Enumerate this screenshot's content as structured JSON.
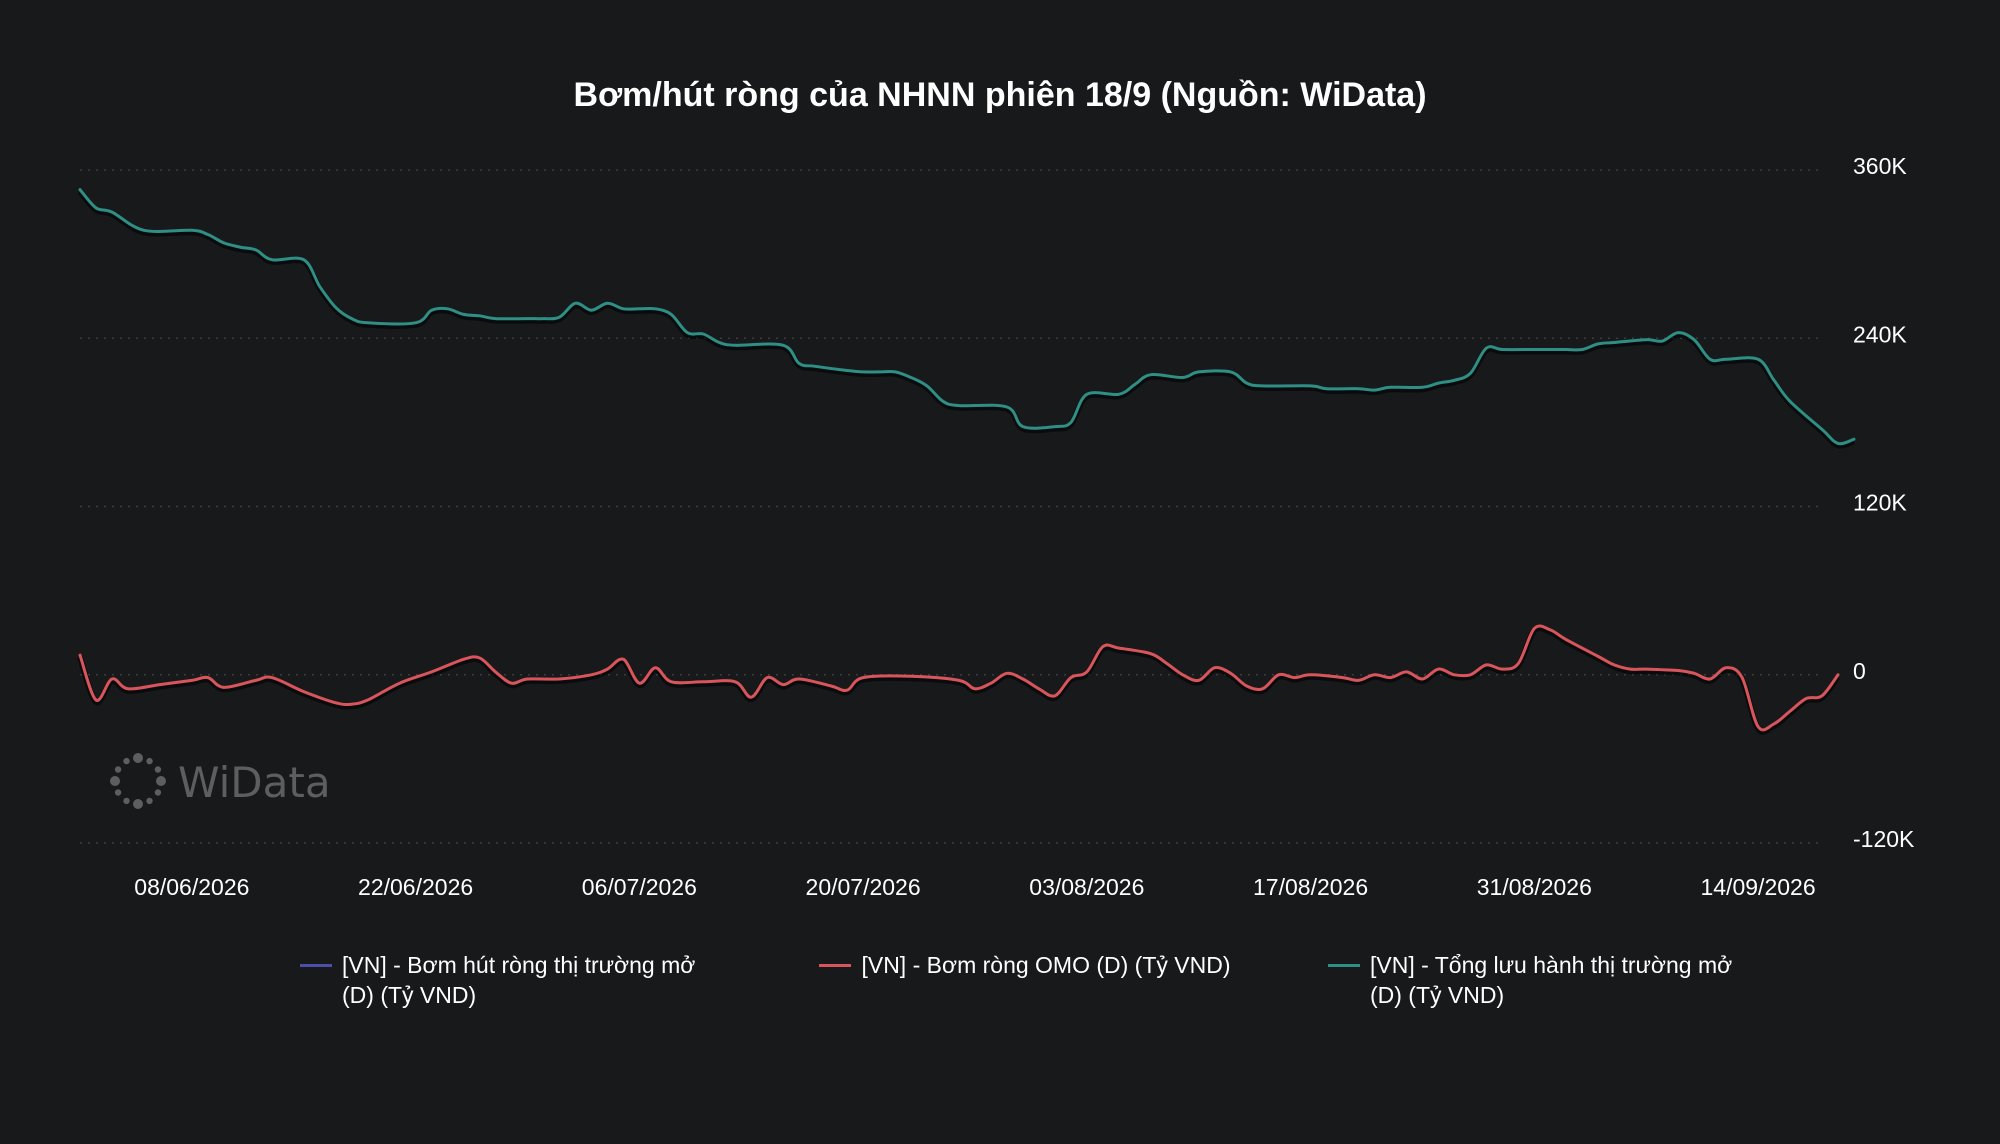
{
  "colors": {
    "background": "#18191b",
    "series_net": "#4b4fa8",
    "series_omo": "#d9555c",
    "series_total": "#2f8f84",
    "grid": "#3a3c40",
    "watermark": "#5c5e62"
  },
  "watermark": {
    "text": "WiData"
  },
  "chart_data": {
    "type": "line",
    "title": "Bơm/hút ròng của NHNN phiên 18/9 (Nguồn: WiData)",
    "x_range": [
      "2026-06-01",
      "2026-09-18"
    ],
    "x_ticks": [
      "08/06/2026",
      "22/06/2026",
      "06/07/2026",
      "20/07/2026",
      "03/08/2026",
      "17/08/2026",
      "31/08/2026",
      "14/09/2026"
    ],
    "x_tick_dates": [
      "2026-06-08",
      "2026-06-22",
      "2026-07-06",
      "2026-07-20",
      "2026-08-03",
      "2026-08-17",
      "2026-08-31",
      "2026-09-14"
    ],
    "y_ticks": [
      {
        "value": 360000,
        "label": "360K"
      },
      {
        "value": 240000,
        "label": "240K"
      },
      {
        "value": 120000,
        "label": "120K"
      },
      {
        "value": 0,
        "label": "0"
      },
      {
        "value": -120000,
        "label": "-120K"
      }
    ],
    "ylim": [
      -120000,
      360000
    ],
    "y_axis_position": "right",
    "grid": true,
    "legend_position": "bottom",
    "series": [
      {
        "name": "[VN] - Bơm hút ròng thị trường mở (D) (Tỷ VND)",
        "color": "#4b4fa8",
        "points": []
      },
      {
        "name": "[VN] - Bơm ròng OMO (D) (Tỷ VND)",
        "color": "#d9555c",
        "points": [
          [
            "2026-06-01",
            14000
          ],
          [
            "2026-06-02",
            -18000
          ],
          [
            "2026-06-03",
            -3000
          ],
          [
            "2026-06-04",
            -10000
          ],
          [
            "2026-06-06",
            -7000
          ],
          [
            "2026-06-08",
            -4000
          ],
          [
            "2026-06-09",
            -2000
          ],
          [
            "2026-06-10",
            -9000
          ],
          [
            "2026-06-12",
            -4000
          ],
          [
            "2026-06-13",
            -2000
          ],
          [
            "2026-06-15",
            -12000
          ],
          [
            "2026-06-17",
            -20000
          ],
          [
            "2026-06-18",
            -21000
          ],
          [
            "2026-06-19",
            -18000
          ],
          [
            "2026-06-21",
            -6000
          ],
          [
            "2026-06-23",
            2000
          ],
          [
            "2026-06-25",
            11000
          ],
          [
            "2026-06-26",
            12000
          ],
          [
            "2026-06-27",
            2000
          ],
          [
            "2026-06-28",
            -6000
          ],
          [
            "2026-06-29",
            -3000
          ],
          [
            "2026-07-01",
            -3000
          ],
          [
            "2026-07-03",
            0
          ],
          [
            "2026-07-04",
            4000
          ],
          [
            "2026-07-05",
            11000
          ],
          [
            "2026-07-06",
            -6000
          ],
          [
            "2026-07-07",
            5000
          ],
          [
            "2026-07-08",
            -5000
          ],
          [
            "2026-07-10",
            -5000
          ],
          [
            "2026-07-12",
            -5000
          ],
          [
            "2026-07-13",
            -16000
          ],
          [
            "2026-07-14",
            -2000
          ],
          [
            "2026-07-15",
            -7000
          ],
          [
            "2026-07-16",
            -3000
          ],
          [
            "2026-07-18",
            -8000
          ],
          [
            "2026-07-19",
            -11000
          ],
          [
            "2026-07-20",
            -2000
          ],
          [
            "2026-07-23",
            -1000
          ],
          [
            "2026-07-26",
            -4000
          ],
          [
            "2026-07-27",
            -10000
          ],
          [
            "2026-07-28",
            -6000
          ],
          [
            "2026-07-29",
            1000
          ],
          [
            "2026-07-30",
            -3000
          ],
          [
            "2026-07-31",
            -10000
          ],
          [
            "2026-08-01",
            -15000
          ],
          [
            "2026-08-02",
            -2000
          ],
          [
            "2026-08-03",
            2000
          ],
          [
            "2026-08-04",
            20000
          ],
          [
            "2026-08-05",
            19000
          ],
          [
            "2026-08-07",
            15000
          ],
          [
            "2026-08-08",
            8000
          ],
          [
            "2026-08-09",
            0
          ],
          [
            "2026-08-10",
            -4000
          ],
          [
            "2026-08-11",
            5000
          ],
          [
            "2026-08-12",
            1000
          ],
          [
            "2026-08-13",
            -8000
          ],
          [
            "2026-08-14",
            -10000
          ],
          [
            "2026-08-15",
            0
          ],
          [
            "2026-08-16",
            -2000
          ],
          [
            "2026-08-17",
            0
          ],
          [
            "2026-08-19",
            -2000
          ],
          [
            "2026-08-20",
            -4000
          ],
          [
            "2026-08-21",
            0
          ],
          [
            "2026-08-22",
            -2000
          ],
          [
            "2026-08-23",
            2000
          ],
          [
            "2026-08-24",
            -3000
          ],
          [
            "2026-08-25",
            4000
          ],
          [
            "2026-08-26",
            0
          ],
          [
            "2026-08-27",
            0
          ],
          [
            "2026-08-28",
            7000
          ],
          [
            "2026-08-29",
            4000
          ],
          [
            "2026-08-30",
            8000
          ],
          [
            "2026-08-31",
            33000
          ],
          [
            "2026-09-01",
            32000
          ],
          [
            "2026-09-02",
            25000
          ],
          [
            "2026-09-04",
            13000
          ],
          [
            "2026-09-05",
            7000
          ],
          [
            "2026-09-06",
            4000
          ],
          [
            "2026-09-07",
            4000
          ],
          [
            "2026-09-09",
            3000
          ],
          [
            "2026-09-10",
            1000
          ],
          [
            "2026-09-11",
            -3000
          ],
          [
            "2026-09-12",
            5000
          ],
          [
            "2026-09-13",
            -2000
          ],
          [
            "2026-09-14",
            -37000
          ],
          [
            "2026-09-15",
            -35000
          ],
          [
            "2026-09-16",
            -26000
          ],
          [
            "2026-09-17",
            -17000
          ],
          [
            "2026-09-18",
            -15000
          ],
          [
            "2026-09-19",
            0
          ]
        ]
      },
      {
        "name": "[VN] - Tổng lưu hành thị trường mở (D) (Tỷ VND)",
        "color": "#2f8f84",
        "points": [
          [
            "2026-06-01",
            346000
          ],
          [
            "2026-06-02",
            333000
          ],
          [
            "2026-06-03",
            330000
          ],
          [
            "2026-06-05",
            317000
          ],
          [
            "2026-06-08",
            317000
          ],
          [
            "2026-06-09",
            314000
          ],
          [
            "2026-06-10",
            308000
          ],
          [
            "2026-06-11",
            305000
          ],
          [
            "2026-06-12",
            303000
          ],
          [
            "2026-06-13",
            296000
          ],
          [
            "2026-06-15",
            296000
          ],
          [
            "2026-06-16",
            277000
          ],
          [
            "2026-06-17",
            262000
          ],
          [
            "2026-06-18",
            254000
          ],
          [
            "2026-06-19",
            251000
          ],
          [
            "2026-06-22",
            251000
          ],
          [
            "2026-06-23",
            260000
          ],
          [
            "2026-06-24",
            261000
          ],
          [
            "2026-06-25",
            257000
          ],
          [
            "2026-06-26",
            256000
          ],
          [
            "2026-06-27",
            254000
          ],
          [
            "2026-06-29",
            254000
          ],
          [
            "2026-06-30",
            254000
          ],
          [
            "2026-07-01",
            255000
          ],
          [
            "2026-07-02",
            265000
          ],
          [
            "2026-07-03",
            260000
          ],
          [
            "2026-07-04",
            265000
          ],
          [
            "2026-07-05",
            261000
          ],
          [
            "2026-07-06",
            261000
          ],
          [
            "2026-07-07",
            261000
          ],
          [
            "2026-07-08",
            257000
          ],
          [
            "2026-07-09",
            244000
          ],
          [
            "2026-07-10",
            243000
          ],
          [
            "2026-07-11",
            237000
          ],
          [
            "2026-07-12",
            235000
          ],
          [
            "2026-07-15",
            235000
          ],
          [
            "2026-07-16",
            222000
          ],
          [
            "2026-07-17",
            220000
          ],
          [
            "2026-07-19",
            217000
          ],
          [
            "2026-07-20",
            216000
          ],
          [
            "2026-07-21",
            216000
          ],
          [
            "2026-07-22",
            216000
          ],
          [
            "2026-07-23",
            212000
          ],
          [
            "2026-07-24",
            206000
          ],
          [
            "2026-07-25",
            195000
          ],
          [
            "2026-07-26",
            192000
          ],
          [
            "2026-07-29",
            191000
          ],
          [
            "2026-07-30",
            177000
          ],
          [
            "2026-08-01",
            177000
          ],
          [
            "2026-08-02",
            180000
          ],
          [
            "2026-08-03",
            200000
          ],
          [
            "2026-08-05",
            200000
          ],
          [
            "2026-08-06",
            207000
          ],
          [
            "2026-08-07",
            214000
          ],
          [
            "2026-08-09",
            212000
          ],
          [
            "2026-08-10",
            216000
          ],
          [
            "2026-08-12",
            216000
          ],
          [
            "2026-08-13",
            208000
          ],
          [
            "2026-08-14",
            206000
          ],
          [
            "2026-08-17",
            206000
          ],
          [
            "2026-08-18",
            204000
          ],
          [
            "2026-08-20",
            204000
          ],
          [
            "2026-08-21",
            203000
          ],
          [
            "2026-08-22",
            205000
          ],
          [
            "2026-08-24",
            205000
          ],
          [
            "2026-08-25",
            208000
          ],
          [
            "2026-08-26",
            210000
          ],
          [
            "2026-08-27",
            215000
          ],
          [
            "2026-08-28",
            233000
          ],
          [
            "2026-08-29",
            232000
          ],
          [
            "2026-08-31",
            232000
          ],
          [
            "2026-09-01",
            232000
          ],
          [
            "2026-09-02",
            232000
          ],
          [
            "2026-09-03",
            232000
          ],
          [
            "2026-09-04",
            236000
          ],
          [
            "2026-09-05",
            237000
          ],
          [
            "2026-09-07",
            239000
          ],
          [
            "2026-09-08",
            238000
          ],
          [
            "2026-09-09",
            244000
          ],
          [
            "2026-09-10",
            239000
          ],
          [
            "2026-09-11",
            225000
          ],
          [
            "2026-09-12",
            225000
          ],
          [
            "2026-09-14",
            225000
          ],
          [
            "2026-09-15",
            210000
          ],
          [
            "2026-09-16",
            195000
          ],
          [
            "2026-09-18",
            175000
          ],
          [
            "2026-09-19",
            165000
          ],
          [
            "2026-09-20",
            168000
          ]
        ]
      }
    ]
  }
}
